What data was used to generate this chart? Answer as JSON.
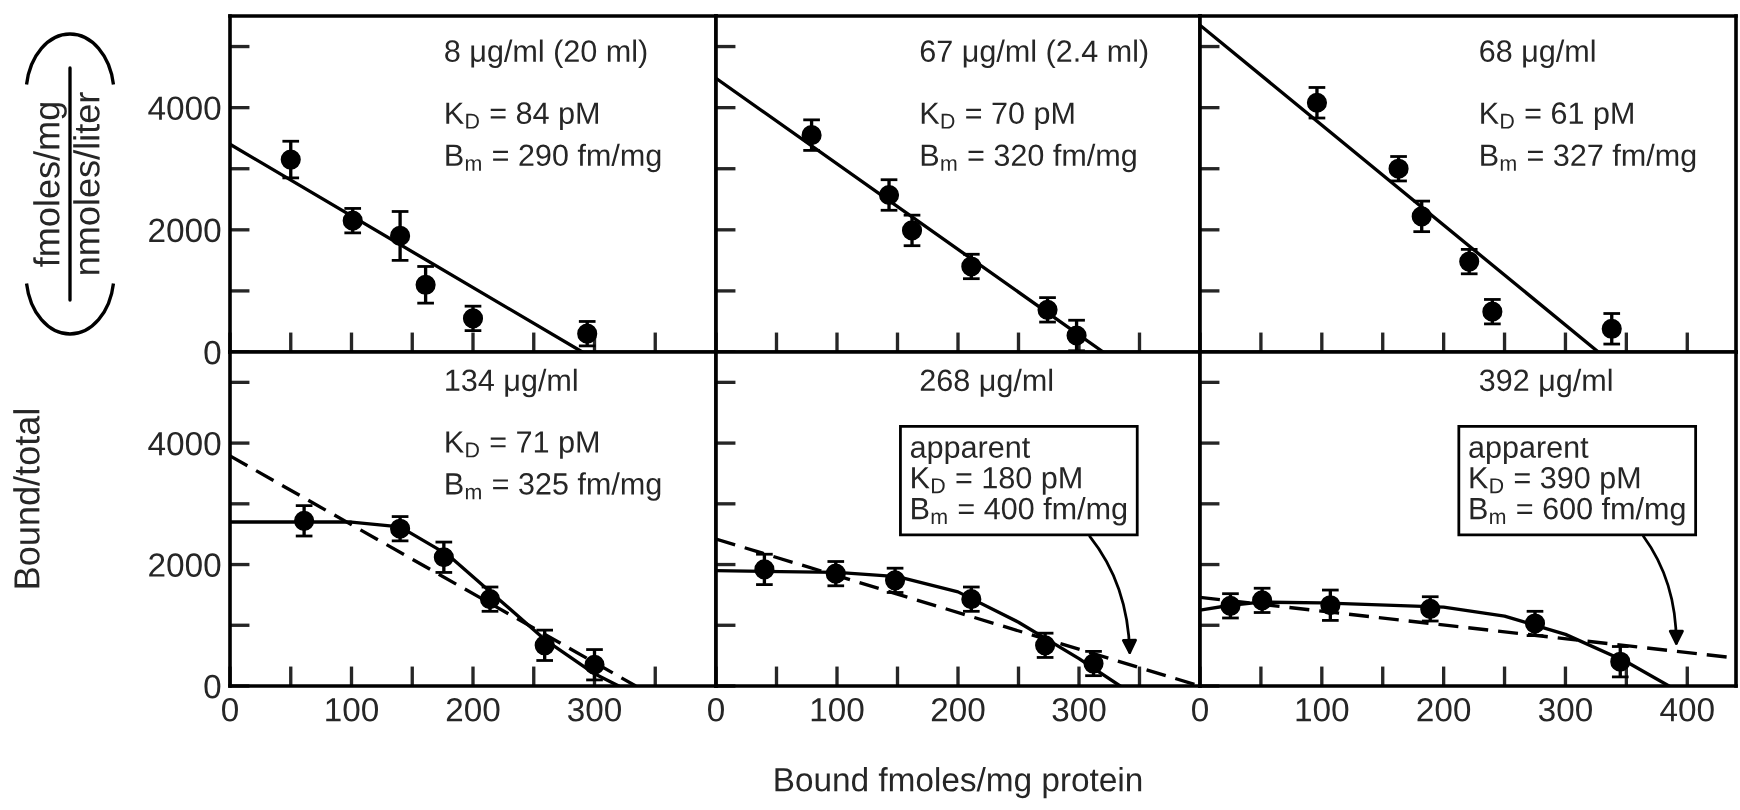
{
  "chart_data": [
    {
      "type": "scatter",
      "xlim": [
        0,
        400
      ],
      "ylim": [
        0,
        5500
      ],
      "tick_labels": "y",
      "ylabel": "fmoles/mg\nnmoles/liter",
      "xticks": [
        {
          "value": 0,
          "label": null
        },
        {
          "value": 50,
          "label": null
        },
        {
          "value": 100,
          "label": null
        },
        {
          "value": 150,
          "label": null
        },
        {
          "value": 200,
          "label": null
        },
        {
          "value": 250,
          "label": null
        },
        {
          "value": 300,
          "label": null
        },
        {
          "value": 350,
          "label": null
        }
      ],
      "yticks": [
        0,
        {
          "value": 1000,
          "label": null
        },
        2000,
        {
          "value": 3000,
          "label": null
        },
        4000,
        {
          "value": 5000,
          "label": null
        }
      ],
      "annotations": [
        "8 μg/ml (20 ml)",
        "K$_{D}$ = 84 pM",
        "B$_{m}$ = 290 fm/mg"
      ],
      "series": [
        {
          "marker": "circle",
          "color": "#000000",
          "x": [
            50,
            101,
            140,
            161,
            200,
            294
          ],
          "values": [
            3150,
            2150,
            1900,
            1100,
            550,
            300
          ],
          "errors": [
            300,
            200,
            400,
            300,
            200,
            200
          ]
        },
        {
          "type": "line",
          "color": "#000000",
          "line_style": "solid",
          "x": [
            0,
            290
          ],
          "values": [
            3400,
            0
          ]
        }
      ]
    },
    {
      "type": "scatter",
      "xlim": [
        0,
        400
      ],
      "ylim": [
        0,
        5500
      ],
      "tick_labels": false,
      "xticks": [
        {
          "value": 0,
          "label": null
        },
        {
          "value": 50,
          "label": null
        },
        {
          "value": 100,
          "label": null
        },
        {
          "value": 150,
          "label": null
        },
        {
          "value": 200,
          "label": null
        },
        {
          "value": 250,
          "label": null
        },
        {
          "value": 300,
          "label": null
        },
        {
          "value": 350,
          "label": null
        }
      ],
      "yticks": [
        {
          "value": 0,
          "label": null
        },
        {
          "value": 1000,
          "label": null
        },
        {
          "value": 2000,
          "label": null
        },
        {
          "value": 3000,
          "label": null
        },
        {
          "value": 4000,
          "label": null
        },
        {
          "value": 5000,
          "label": null
        }
      ],
      "annotations": [
        "67 μg/ml (2.4 ml)",
        "K$_{D}$ = 70 pM",
        "B$_{m}$ = 320 fm/mg"
      ],
      "series": [
        {
          "marker": "circle",
          "color": "#000000",
          "x": [
            79,
            143,
            162,
            211,
            274,
            298
          ],
          "values": [
            3550,
            2570,
            1990,
            1400,
            690,
            270
          ],
          "errors": [
            250,
            250,
            250,
            200,
            200,
            250
          ]
        },
        {
          "type": "line",
          "color": "#000000",
          "line_style": "solid",
          "x": [
            0,
            320
          ],
          "values": [
            4480,
            0
          ]
        }
      ]
    },
    {
      "type": "scatter",
      "xlim": [
        0,
        440
      ],
      "ylim": [
        0,
        5500
      ],
      "tick_labels": false,
      "xticks": [
        {
          "value": 0,
          "label": null
        },
        {
          "value": 50,
          "label": null
        },
        {
          "value": 100,
          "label": null
        },
        {
          "value": 150,
          "label": null
        },
        {
          "value": 200,
          "label": null
        },
        {
          "value": 250,
          "label": null
        },
        {
          "value": 300,
          "label": null
        },
        {
          "value": 350,
          "label": null
        },
        {
          "value": 400,
          "label": null
        }
      ],
      "yticks": [
        {
          "value": 0,
          "label": null
        },
        {
          "value": 1000,
          "label": null
        },
        {
          "value": 2000,
          "label": null
        },
        {
          "value": 3000,
          "label": null
        },
        {
          "value": 4000,
          "label": null
        },
        {
          "value": 5000,
          "label": null
        }
      ],
      "annotations": [
        "68 μg/ml",
        "K$_{D}$ = 61 pM",
        "B$_{m}$ = 327 fm/mg"
      ],
      "series": [
        {
          "marker": "circle",
          "color": "#000000",
          "x": [
            96,
            163,
            182,
            221,
            240,
            338
          ],
          "values": [
            4080,
            3000,
            2220,
            1480,
            660,
            380
          ],
          "errors": [
            250,
            200,
            250,
            200,
            200,
            250
          ]
        },
        {
          "type": "line",
          "color": "#000000",
          "line_style": "solid",
          "x": [
            0,
            327
          ],
          "values": [
            5350,
            0
          ]
        }
      ]
    },
    {
      "type": "scatter",
      "xlim": [
        0,
        400
      ],
      "ylim": [
        0,
        5500
      ],
      "ylabel": "Bound/total",
      "xticks": [
        0,
        {
          "value": 50,
          "label": null
        },
        100,
        {
          "value": 150,
          "label": null
        },
        200,
        {
          "value": 250,
          "label": null
        },
        300,
        {
          "value": 350,
          "label": null
        }
      ],
      "yticks": [
        0,
        {
          "value": 1000,
          "label": null
        },
        2000,
        {
          "value": 3000,
          "label": null
        },
        4000,
        {
          "value": 5000,
          "label": null
        }
      ],
      "annotations": [
        "134 μg/ml",
        "K$_{D}$ = 71 pM",
        "B$_{m}$ = 325 fm/mg"
      ],
      "series": [
        {
          "marker": "circle",
          "color": "#000000",
          "x": [
            61,
            140,
            176,
            214,
            259,
            300
          ],
          "values": [
            2720,
            2590,
            2120,
            1430,
            670,
            350
          ],
          "errors": [
            250,
            200,
            250,
            200,
            250,
            250
          ]
        },
        {
          "type": "line",
          "color": "#000000",
          "line_style": "solid",
          "x": [
            0,
            100,
            140,
            180,
            220,
            260,
            300,
            320
          ],
          "values": [
            2700,
            2700,
            2620,
            2150,
            1450,
            750,
            200,
            0
          ]
        },
        {
          "type": "line",
          "color": "#000000",
          "line_style": "dashed",
          "x": [
            0,
            334
          ],
          "values": [
            3790,
            0
          ]
        }
      ]
    },
    {
      "type": "scatter",
      "xlim": [
        0,
        400
      ],
      "ylim": [
        0,
        5500
      ],
      "tick_labels": "x",
      "xlabel": "Bound fmoles/mg protein",
      "xticks": [
        0,
        {
          "value": 50,
          "label": null
        },
        100,
        {
          "value": 150,
          "label": null
        },
        200,
        {
          "value": 250,
          "label": null
        },
        300,
        {
          "value": 350,
          "label": null
        }
      ],
      "yticks": [
        {
          "value": 0,
          "label": null
        },
        {
          "value": 1000,
          "label": null
        },
        {
          "value": 2000,
          "label": null
        },
        {
          "value": 3000,
          "label": null
        },
        {
          "value": 4000,
          "label": null
        },
        {
          "value": 5000,
          "label": null
        }
      ],
      "annotations": [
        "268 μg/ml",
        {
          "text": "apparent\nK$_{D}$ = 180 pM\nB$_{m}$ = 400 fm/mg",
          "x": 342,
          "y": 500
        }
      ],
      "series": [
        {
          "marker": "circle",
          "color": "#000000",
          "x": [
            40,
            99,
            148,
            211,
            272,
            312
          ],
          "values": [
            1920,
            1850,
            1740,
            1430,
            670,
            370
          ],
          "errors": [
            250,
            200,
            200,
            200,
            200,
            200
          ]
        },
        {
          "type": "line",
          "color": "#000000",
          "line_style": "solid",
          "x": [
            0,
            100,
            150,
            200,
            250,
            300,
            334
          ],
          "values": [
            1900,
            1870,
            1800,
            1550,
            1050,
            450,
            0
          ]
        },
        {
          "type": "line",
          "color": "#000000",
          "line_style": "dashed",
          "x": [
            0,
            400
          ],
          "values": [
            2420,
            0
          ]
        }
      ]
    },
    {
      "type": "scatter",
      "xlim": [
        0,
        440
      ],
      "ylim": [
        0,
        5500
      ],
      "tick_labels": "x",
      "xticks": [
        0,
        {
          "value": 50,
          "label": null
        },
        100,
        {
          "value": 150,
          "label": null
        },
        200,
        {
          "value": 250,
          "label": null
        },
        300,
        {
          "value": 350,
          "label": null
        },
        400
      ],
      "yticks": [
        {
          "value": 0,
          "label": null
        },
        {
          "value": 1000,
          "label": null
        },
        {
          "value": 2000,
          "label": null
        },
        {
          "value": 3000,
          "label": null
        },
        {
          "value": 4000,
          "label": null
        },
        {
          "value": 5000,
          "label": null
        }
      ],
      "annotations": [
        "392 μg/ml",
        {
          "text": "apparent\nK$_{D}$ = 390 pM\nB$_{m}$ = 600 fm/mg",
          "x": 391,
          "y": 650
        }
      ],
      "series": [
        {
          "marker": "circle",
          "color": "#000000",
          "x": [
            25,
            51,
            107,
            189,
            275,
            345
          ],
          "values": [
            1320,
            1410,
            1330,
            1270,
            1030,
            400
          ],
          "errors": [
            200,
            200,
            250,
            200,
            200,
            250
          ]
        },
        {
          "type": "line",
          "color": "#000000",
          "line_style": "solid",
          "x": [
            0,
            25,
            50,
            100,
            200,
            250,
            300,
            350,
            385
          ],
          "values": [
            1250,
            1330,
            1380,
            1370,
            1300,
            1150,
            850,
            400,
            0
          ]
        },
        {
          "type": "line",
          "color": "#000000",
          "line_style": "dashed",
          "x": [
            0,
            440
          ],
          "values": [
            1460,
            460
          ]
        }
      ]
    }
  ]
}
